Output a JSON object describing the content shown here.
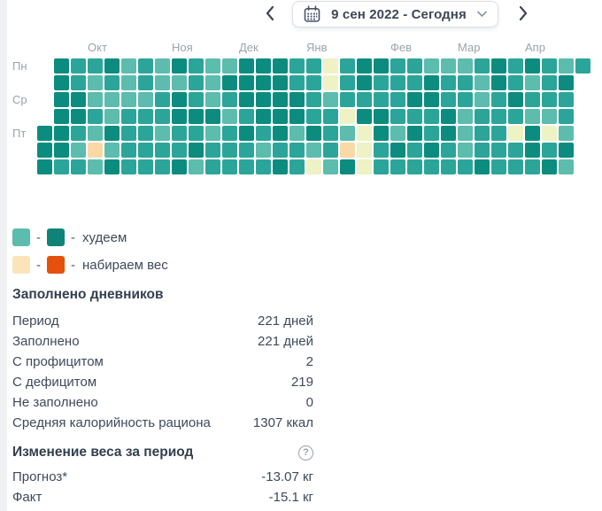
{
  "header": {
    "date_range": "9 сен 2022 - Сегодня",
    "prev_icon": "chevron-left",
    "next_icon": "chevron-right",
    "calendar_icon": "calendar",
    "dropdown_icon": "chevron-down",
    "accent_text_color": "#3b4757"
  },
  "heatmap": {
    "palette": {
      "a": "#5cbcae",
      "b": "#2ba599",
      "c": "#0b8c7f",
      "y": "#eef2c4",
      "p": "#fbd9a6"
    },
    "months": [
      {
        "label": "Окт",
        "col": 3
      },
      {
        "label": "Ноя",
        "col": 8
      },
      {
        "label": "Дек",
        "col": 12
      },
      {
        "label": "Янв",
        "col": 16
      },
      {
        "label": "Фев",
        "col": 21
      },
      {
        "label": "Мар",
        "col": 25
      },
      {
        "label": "Апр",
        "col": 29
      }
    ],
    "day_labels": [
      {
        "label": "Пн",
        "row": 0
      },
      {
        "label": "Ср",
        "row": 2
      },
      {
        "label": "Пт",
        "row": 4
      }
    ],
    "grid_rows": [
      ".cbbcabacbaacccbbybccbbaaabcbcbab",
      ".cbababaabaccccbbybcbbbcbbacbabc.",
      ".ccaaaabcbabccccbabbbbccbbabcbbb.",
      ".ccbabbbcccabcccbbyccbbbcabbbaab.",
      "ccbacbbabbabcbcacbaycacbcabbycya.",
      "ccapabbbbcbbbabbabpybcbcbabbbcbc.",
      "cbbacbbbcabbbbcbyacybbbbbbcbbbca."
    ]
  },
  "legend": [
    {
      "swatch1": "#5cbcae",
      "swatch2": "#0e8478",
      "separator": "-",
      "label": "худеем"
    },
    {
      "swatch1": "#fbe3ba",
      "swatch2": "#e5510c",
      "separator": "-",
      "label": "набираем вес"
    }
  ],
  "sections": [
    {
      "title": "Заполнено дневников",
      "rows": [
        {
          "label": "Период",
          "value": "221 дней"
        },
        {
          "label": "Заполнено",
          "value": "221 дней"
        },
        {
          "label": "С профицитом",
          "value": "2"
        },
        {
          "label": "С дефицитом",
          "value": "219"
        },
        {
          "label": "Не заполнено",
          "value": "0"
        },
        {
          "label": "Средняя калорийность рациона",
          "value": "1307 ккал"
        }
      ]
    },
    {
      "title": "Изменение веса за период",
      "help_icon": "question-circle",
      "rows": [
        {
          "label": "Прогноз*",
          "value": "-13.07 кг"
        },
        {
          "label": "Факт",
          "value": "-15.1 кг"
        }
      ]
    }
  ]
}
